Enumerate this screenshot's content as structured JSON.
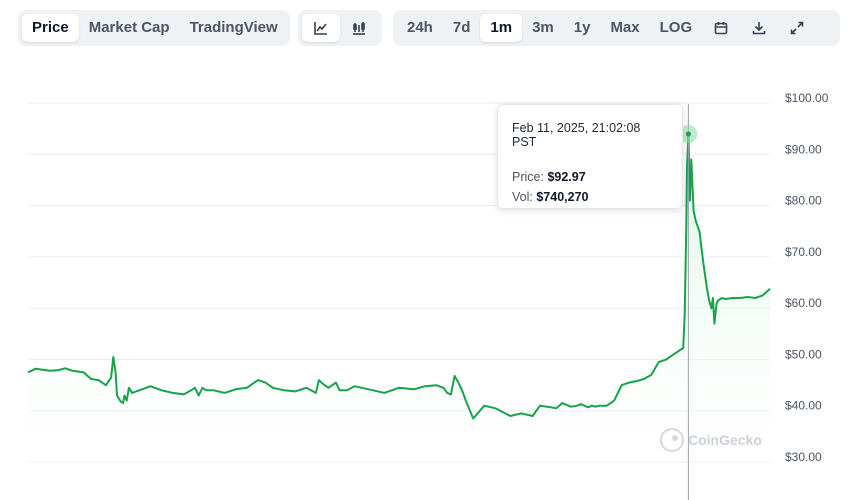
{
  "toolbar": {
    "metric_tabs": [
      {
        "label": "Price",
        "active": true
      },
      {
        "label": "Market Cap",
        "active": false
      },
      {
        "label": "TradingView",
        "active": false
      }
    ],
    "chart_type_icons": [
      "line-chart-icon",
      "candlestick-chart-icon"
    ],
    "range_tabs": [
      {
        "label": "24h",
        "active": false
      },
      {
        "label": "7d",
        "active": false
      },
      {
        "label": "1m",
        "active": true
      },
      {
        "label": "3m",
        "active": false
      },
      {
        "label": "1y",
        "active": false
      },
      {
        "label": "Max",
        "active": false
      },
      {
        "label": "LOG",
        "active": false
      }
    ],
    "action_icons": [
      "calendar-icon",
      "download-icon",
      "expand-icon"
    ]
  },
  "tooltip": {
    "date": "Feb 11, 2025, 21:02:08 PST",
    "price_label": "Price:",
    "price_value": "$92.97",
    "vol_label": "Vol:",
    "vol_value": "$740,270"
  },
  "watermark": "CoinGecko",
  "colors": {
    "line": "#16a34a",
    "fill_top": "#d8f3e1",
    "grid": "#e9ecef",
    "tab_bg": "#eff2f5"
  },
  "chart_data": {
    "type": "area",
    "ylim": [
      30,
      100
    ],
    "yticks": [
      30,
      40,
      50,
      60,
      70,
      80,
      90,
      100
    ],
    "ytick_labels": [
      "$30.00",
      "$40.00",
      "$50.00",
      "$60.00",
      "$70.00",
      "$80.00",
      "$90.00",
      "$100.00"
    ],
    "grid": true,
    "x_index_range": [
      0,
      1000
    ],
    "hover_index": 890,
    "series": [
      {
        "x": [
          0,
          10,
          20,
          30,
          40,
          50,
          60,
          75,
          85,
          95,
          105,
          112,
          115,
          118,
          120,
          125,
          128,
          130,
          133,
          136,
          140,
          150,
          165,
          180,
          195,
          210,
          220,
          225,
          230,
          235,
          240,
          250,
          265,
          280,
          295,
          310,
          320,
          330,
          345,
          360,
          375,
          388,
          392,
          398,
          405,
          415,
          420,
          430,
          440,
          450,
          465,
          480,
          500,
          520,
          535,
          550,
          560,
          565,
          570,
          575,
          580,
          585,
          590,
          600,
          615,
          630,
          650,
          665,
          680,
          690,
          700,
          712,
          720,
          732,
          740,
          745,
          750,
          755,
          760,
          765,
          770,
          780,
          790,
          800,
          810,
          820,
          830,
          840,
          850,
          860,
          870,
          875,
          880,
          883,
          885,
          887,
          888,
          890,
          892,
          894,
          897,
          900,
          905,
          910,
          915,
          918,
          921,
          923,
          925,
          928,
          930,
          935,
          940,
          950,
          960,
          970,
          980,
          990,
          1000
        ],
        "values": [
          46.5,
          47.2,
          47.0,
          46.8,
          46.9,
          47.3,
          46.8,
          46.5,
          45.2,
          45.0,
          44.0,
          45.5,
          49.5,
          46.5,
          42.0,
          40.8,
          40.5,
          42.0,
          41.0,
          43.5,
          42.5,
          43.0,
          43.8,
          43.0,
          42.5,
          42.2,
          43.0,
          43.5,
          42.0,
          43.5,
          43.0,
          43.0,
          42.5,
          43.2,
          43.5,
          45.0,
          44.5,
          43.5,
          43.0,
          42.8,
          43.5,
          42.5,
          45.0,
          44.2,
          43.5,
          44.5,
          43.0,
          43.0,
          43.8,
          43.5,
          43.0,
          42.5,
          43.5,
          43.2,
          43.8,
          44.0,
          43.5,
          42.5,
          42.2,
          45.8,
          44.5,
          43.0,
          41.0,
          37.5,
          40.0,
          39.5,
          38.0,
          38.5,
          38.0,
          40.0,
          39.8,
          39.5,
          40.5,
          39.8,
          40.0,
          40.3,
          40.0,
          39.7,
          40.0,
          39.8,
          40.0,
          40.0,
          41.0,
          44.0,
          44.5,
          44.8,
          45.2,
          46.0,
          48.5,
          49.0,
          50.0,
          50.5,
          51.0,
          51.2,
          58.0,
          74.0,
          86.0,
          92.97,
          80.0,
          88.0,
          78.0,
          76.0,
          74.0,
          68.0,
          63.0,
          60.5,
          59.0,
          61.0,
          56.0,
          60.0,
          60.5,
          61.0,
          60.8,
          61.0,
          61.0,
          61.2,
          61.0,
          61.5,
          62.8
        ]
      }
    ]
  }
}
